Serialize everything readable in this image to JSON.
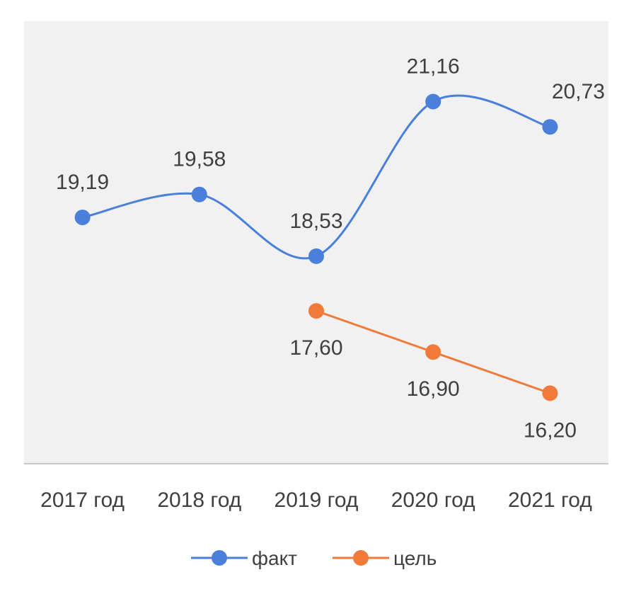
{
  "chart_data": {
    "type": "line",
    "categories": [
      "2017 год",
      "2018 год",
      "2019 год",
      "2020 год",
      "2021 год"
    ],
    "series": [
      {
        "name": "факт",
        "color": "#4a7fdc",
        "smooth": true,
        "values": [
          19.19,
          19.58,
          18.53,
          21.16,
          20.73
        ],
        "labels": [
          "19,19",
          "19,58",
          "18,53",
          "21,16",
          "20,73"
        ]
      },
      {
        "name": "цель",
        "color": "#ef7a3a",
        "smooth": false,
        "values": [
          null,
          null,
          17.6,
          16.9,
          16.2
        ],
        "labels": [
          "",
          "",
          "17,60",
          "16,90",
          "16,20"
        ]
      }
    ],
    "ylim": [
      15.0,
      22.0
    ],
    "grid": false,
    "legend": "bottom",
    "plot_background": "#f0f1f0"
  }
}
